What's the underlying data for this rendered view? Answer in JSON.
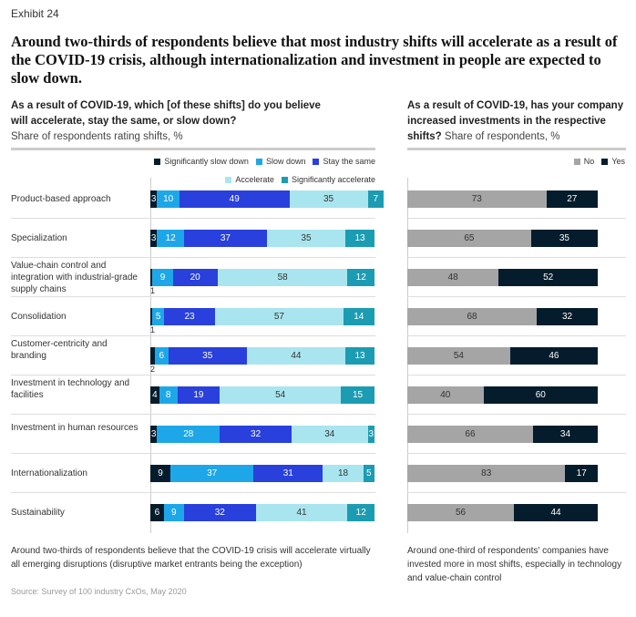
{
  "header": {
    "exhibit": "Exhibit 24",
    "title": "Around two-thirds of respondents believe that most industry shifts will accelerate as a result of the COVID-19 crisis, although internationalization and investment in people are expected to slow down."
  },
  "left": {
    "question": "As a result of COVID-19, which [of these shifts] do you believe will accelerate, stay the same, or slow down?",
    "subtitle": "Share of respondents rating shifts, %",
    "note": "Around two-thirds of respondents believe that the COVID-19 crisis will accelerate virtually all emerging disruptions (disruptive market entrants being the exception)"
  },
  "right": {
    "question": "As a result of COVID-19, has your company increased investments in the respective shifts?",
    "subtitle": "Share of respondents, %",
    "note": "Around one-third of respondents' companies have invested more in most shifts, especially in technology and value-chain control"
  },
  "source": "Source: Survey of 100 industry CxOs, May 2020",
  "chart_data": [
    {
      "type": "bar",
      "stacked": true,
      "orientation": "horizontal",
      "categories": [
        "Product-based approach",
        "Specialization",
        "Value-chain control and integration with industrial-grade supply chains",
        "Consolidation",
        "Customer-centricity and branding",
        "Investment in technology and facilities",
        "Investment in human resources",
        "Internationalization",
        "Sustainability"
      ],
      "series": [
        {
          "name": "Significantly slow down",
          "color": "#051c2c",
          "values": [
            3,
            3,
            1,
            1,
            2,
            4,
            3,
            9,
            6
          ]
        },
        {
          "name": "Slow down",
          "color": "#1ea7e8",
          "values": [
            10,
            12,
            9,
            5,
            6,
            8,
            28,
            37,
            9
          ]
        },
        {
          "name": "Stay the same",
          "color": "#2940dc",
          "values": [
            49,
            37,
            20,
            23,
            35,
            19,
            32,
            31,
            32
          ]
        },
        {
          "name": "Accelerate",
          "color": "#a9e5ef",
          "values": [
            35,
            35,
            58,
            57,
            44,
            54,
            34,
            18,
            41
          ]
        },
        {
          "name": "Significantly accelerate",
          "color": "#1c9cb2",
          "values": [
            7,
            13,
            12,
            14,
            13,
            15,
            3,
            5,
            12
          ]
        }
      ],
      "xlim": [
        0,
        100
      ]
    },
    {
      "type": "bar",
      "stacked": true,
      "orientation": "horizontal",
      "series": [
        {
          "name": "No",
          "color": "#a5a5a5",
          "values": [
            73,
            65,
            48,
            68,
            54,
            40,
            66,
            83,
            56
          ]
        },
        {
          "name": "Yes",
          "color": "#051c2c",
          "values": [
            27,
            35,
            52,
            32,
            46,
            60,
            34,
            17,
            44
          ]
        }
      ],
      "xlim": [
        0,
        100
      ]
    }
  ]
}
